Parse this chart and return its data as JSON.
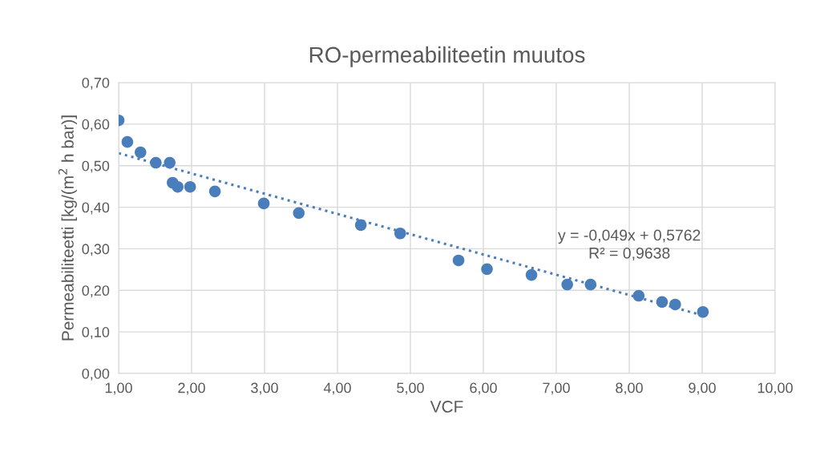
{
  "chart_data": {
    "type": "scatter",
    "title": "RO-permeabiliteetin muutos",
    "xlabel": "VCF",
    "ylabel": "Permeabiliteetti [kg/(m$^{2}$ h bar)]",
    "series": [
      {
        "color": "#4a7ebb",
        "marker": "circle",
        "x": [
          1.0,
          1.12,
          1.3,
          1.51,
          1.7,
          1.74,
          1.81,
          1.98,
          2.32,
          2.99,
          3.47,
          4.32,
          4.86,
          5.66,
          6.05,
          6.66,
          7.15,
          7.47,
          8.13,
          8.45,
          8.63,
          9.01
        ],
        "values": [
          0.609,
          0.557,
          0.532,
          0.507,
          0.507,
          0.459,
          0.449,
          0.449,
          0.438,
          0.409,
          0.386,
          0.357,
          0.337,
          0.272,
          0.251,
          0.237,
          0.214,
          0.214,
          0.187,
          0.172,
          0.166,
          0.148
        ]
      },
      {
        "type": "line",
        "color": "#4a7ebb",
        "line_style": "dotted",
        "x": [
          1.0,
          9.0
        ],
        "values": [
          0.53,
          0.14
        ]
      }
    ],
    "annotations": [
      "y = -0,049x + 0,5762\nR² = 0,9638"
    ],
    "xlim": [
      1.0,
      10.0
    ],
    "ylim": [
      0.0,
      0.7
    ],
    "xticks": [
      {
        "value": 1,
        "label": "1,00"
      },
      {
        "value": 2,
        "label": "2,00"
      },
      {
        "value": 3,
        "label": "3,00"
      },
      {
        "value": 4,
        "label": "4,00"
      },
      {
        "value": 5,
        "label": "5,00"
      },
      {
        "value": 6,
        "label": "6,00"
      },
      {
        "value": 7,
        "label": "7,00"
      },
      {
        "value": 8,
        "label": "8,00"
      },
      {
        "value": 9,
        "label": "9,00"
      },
      {
        "value": 10,
        "label": "10,00"
      }
    ],
    "yticks": [
      {
        "value": 0,
        "label": "0,00"
      },
      {
        "value": 0.1,
        "label": "0,10"
      },
      {
        "value": 0.2,
        "label": "0,20"
      },
      {
        "value": 0.3,
        "label": "0,30"
      },
      {
        "value": 0.4,
        "label": "0,40"
      },
      {
        "value": 0.5,
        "label": "0,50"
      },
      {
        "value": 0.6,
        "label": "0,60"
      },
      {
        "value": 0.7,
        "label": "0,70"
      }
    ],
    "grid": true
  }
}
